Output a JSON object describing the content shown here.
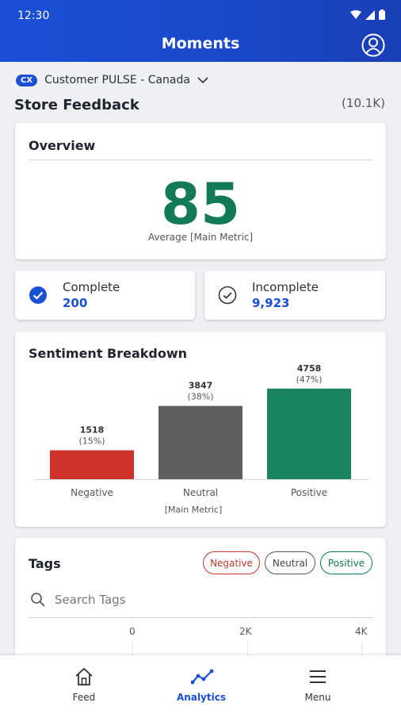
{
  "status_bar": {
    "time": "12:30"
  },
  "app_bar": {
    "title": "Moments"
  },
  "program": {
    "badge": "CX",
    "name": "Customer PULSE - Canada"
  },
  "page": {
    "title": "Store Feedback",
    "count": "(10.1K)"
  },
  "overview": {
    "title": "Overview",
    "metric_value": "85",
    "metric_label": "Average [Main Metric]"
  },
  "stats": {
    "complete": {
      "label": "Complete",
      "value": "200"
    },
    "incomplete": {
      "label": "Incomplete",
      "value": "9,923"
    }
  },
  "sentiment": {
    "title": "Sentiment Breakdown"
  },
  "chart_data": {
    "type": "bar",
    "categories": [
      "Negative",
      "Neutral",
      "Positive"
    ],
    "values": [
      1518,
      3847,
      4758
    ],
    "percent_labels": [
      "(15%)",
      "(38%)",
      "(47%)"
    ],
    "colors": [
      "#d0322e",
      "#5f5f5f",
      "#1a845e"
    ],
    "xlabel": "[Main Metric]",
    "ylim": [
      0,
      5000
    ]
  },
  "tags": {
    "title": "Tags",
    "filters": [
      "Negative",
      "Neutral",
      "Positive"
    ],
    "search_placeholder": "Search Tags",
    "axis_ticks": [
      "0",
      "2K",
      "4K"
    ]
  },
  "bottom_nav": {
    "items": [
      {
        "label": "Feed",
        "icon": "home-icon"
      },
      {
        "label": "Analytics",
        "icon": "analytics-icon",
        "active": true
      },
      {
        "label": "Menu",
        "icon": "menu-icon"
      }
    ]
  }
}
